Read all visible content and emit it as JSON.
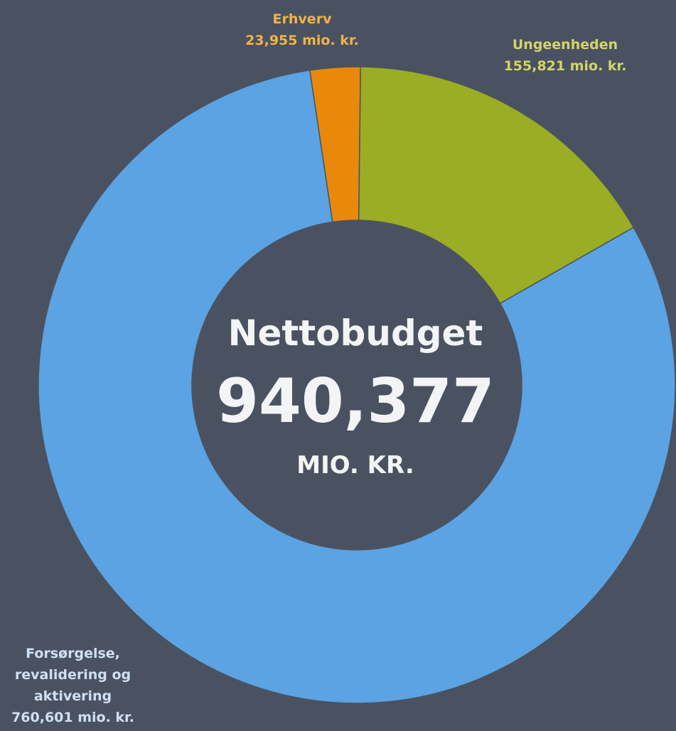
{
  "chart_data": {
    "type": "donut",
    "categories": [
      "Erhverv",
      "Ungeenheden",
      "Forsørgelse, revalidering og aktivering"
    ],
    "values": [
      23.955,
      155.821,
      760.601
    ],
    "value_labels": [
      "23,955 mio. kr.",
      "155,821 mio. kr.",
      "760,601 mio. kr."
    ],
    "colors": [
      "#e8890c",
      "#9aad24",
      "#5ba3e2"
    ],
    "label_colors": [
      "#f2b347",
      "#d4d46a",
      "#cfe0f5"
    ],
    "annotations": [
      "Nettobudget",
      "940,377",
      "MIO. KR."
    ]
  }
}
